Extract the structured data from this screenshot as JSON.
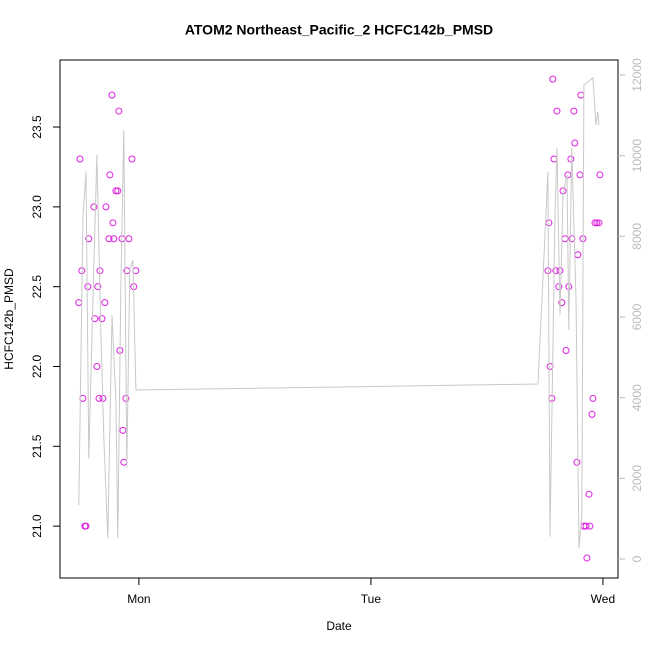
{
  "chart_data": {
    "type": "scatter",
    "title": "ATOM2 Northeast_Pacific_2 HCFC142b_PMSD",
    "xlabel": "Date",
    "ylabel": "HCFC142b_PMSD",
    "xlim": [
      0.66,
      3.065
    ],
    "xticks": [
      {
        "value": 1,
        "label": "Mon"
      },
      {
        "value": 2,
        "label": "Tue"
      },
      {
        "value": 3,
        "label": "Wed"
      }
    ],
    "ylim": [
      20.675,
      23.92
    ],
    "yticks": [
      {
        "value": 21,
        "label": "21.0"
      },
      21.5,
      {
        "value": 22,
        "label": "22.0"
      },
      22.5,
      {
        "value": 23,
        "label": "23.0"
      },
      23.5
    ],
    "y2lim": [
      -471,
      12372
    ],
    "y2ticks": [
      0,
      2000,
      4000,
      6000,
      8000,
      10000,
      12000
    ],
    "series": [
      {
        "type": "scatter",
        "color": "#e020e0",
        "x": [
          0.741,
          0.746,
          0.754,
          0.759,
          0.767,
          0.772,
          0.78,
          0.784,
          0.806,
          0.81,
          0.819,
          0.823,
          0.828,
          0.832,
          0.841,
          0.845,
          0.853,
          0.858,
          0.871,
          0.875,
          0.884,
          0.888,
          0.892,
          0.901,
          0.909,
          0.914,
          0.918,
          0.927,
          0.931,
          0.935,
          0.944,
          0.948,
          0.957,
          0.97,
          0.978,
          0.987,
          2.763,
          2.767,
          2.772,
          2.78,
          2.784,
          2.789,
          2.797,
          2.802,
          2.81,
          2.815,
          2.823,
          2.828,
          2.836,
          2.841,
          2.849,
          2.853,
          2.862,
          2.866,
          2.875,
          2.879,
          2.888,
          2.892,
          2.901,
          2.905,
          2.914,
          2.918,
          2.927,
          2.931,
          2.94,
          2.944,
          2.953,
          2.957,
          2.966,
          2.974,
          2.983,
          2.987
        ],
        "values": [
          22.4,
          23.3,
          22.6,
          21.8,
          21,
          21,
          22.5,
          22.8,
          23,
          22.3,
          22,
          22.5,
          21.8,
          22.6,
          22.3,
          21.8,
          22.4,
          23,
          22.8,
          23.2,
          23.7,
          22.9,
          22.8,
          23.1,
          23.1,
          23.6,
          22.1,
          22.8,
          21.6,
          21.4,
          21.8,
          22.6,
          22.8,
          23.3,
          22.5,
          22.6,
          22.6,
          22.9,
          22,
          21.8,
          23.8,
          23.3,
          22.6,
          23.6,
          22.5,
          22.6,
          22.4,
          23.1,
          22.8,
          22.1,
          23.2,
          22.5,
          23.3,
          22.8,
          23.6,
          23.4,
          21.4,
          22.7,
          23.2,
          23.7,
          22.8,
          21,
          21,
          20.8,
          21.2,
          21,
          21.7,
          21.8,
          22.9,
          22.9,
          22.9,
          23.2
        ]
      },
      {
        "type": "line",
        "axis": "y2",
        "color": "#c8c8c8",
        "x": [
          0.741,
          0.759,
          0.772,
          0.784,
          0.802,
          0.819,
          0.836,
          0.849,
          0.866,
          0.884,
          0.901,
          0.909,
          0.922,
          0.935,
          0.948,
          0.961,
          0.974,
          0.987,
          2.72,
          2.763,
          2.772,
          2.793,
          2.802,
          2.815,
          2.828,
          2.845,
          2.853,
          2.866,
          2.884,
          2.897,
          2.909,
          2.918,
          2.957,
          2.97,
          2.978,
          2.983
        ],
        "values": [
          1340,
          8530,
          9600,
          2500,
          6420,
          10020,
          5680,
          2950,
          520,
          6050,
          3940,
          520,
          6670,
          10640,
          2260,
          7170,
          7410,
          4190,
          4340,
          9600,
          550,
          8400,
          10190,
          6050,
          9030,
          9520,
          5680,
          10190,
          6420,
          270,
          1090,
          11750,
          11930,
          10760,
          11080,
          10760
        ]
      }
    ]
  }
}
